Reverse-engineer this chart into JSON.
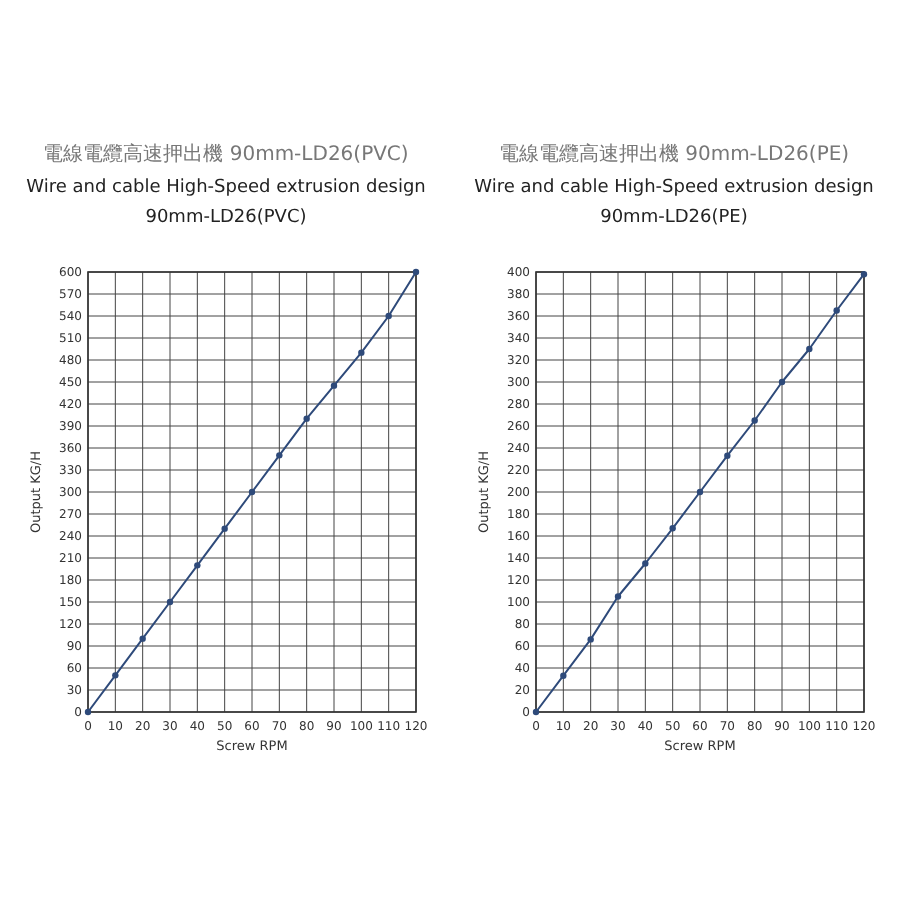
{
  "chart_data": [
    {
      "type": "line",
      "title": "電線電纜高速押出機 90mm-LD26(PVC)",
      "subtitle": "Wire and cable High-Speed extrusion design\n90mm-LD26(PVC)",
      "xlabel": "Screw RPM",
      "ylabel": "Output KG/H",
      "x": [
        0,
        10,
        20,
        30,
        40,
        50,
        60,
        70,
        80,
        90,
        100,
        110,
        120
      ],
      "series": [
        {
          "color": "#2e4a7a",
          "values": [
            0,
            50,
            100,
            150,
            200,
            250,
            300,
            350,
            400,
            445,
            490,
            540,
            600
          ]
        }
      ],
      "xlim": [
        0,
        120
      ],
      "xticks": [
        0,
        10,
        20,
        30,
        40,
        50,
        60,
        70,
        80,
        90,
        100,
        110,
        120
      ],
      "ylim": [
        0,
        600
      ],
      "yticks": [
        0,
        30,
        60,
        90,
        120,
        150,
        180,
        210,
        240,
        270,
        300,
        330,
        360,
        390,
        420,
        450,
        480,
        510,
        540,
        570,
        600
      ],
      "grid": true,
      "marker": "circle",
      "line_style": "solid"
    },
    {
      "type": "line",
      "title": "電線電纜高速押出機 90mm-LD26(PE)",
      "subtitle": "Wire and cable High-Speed extrusion design\n90mm-LD26(PE)",
      "xlabel": "Screw RPM",
      "ylabel": "Output KG/H",
      "x": [
        0,
        10,
        20,
        30,
        40,
        50,
        60,
        70,
        80,
        90,
        100,
        110,
        120
      ],
      "series": [
        {
          "color": "#2e4a7a",
          "values": [
            0,
            33,
            66,
            105,
            135,
            167,
            200,
            233,
            265,
            300,
            330,
            365,
            398
          ]
        }
      ],
      "xlim": [
        0,
        120
      ],
      "xticks": [
        0,
        10,
        20,
        30,
        40,
        50,
        60,
        70,
        80,
        90,
        100,
        110,
        120
      ],
      "ylim": [
        0,
        400
      ],
      "yticks": [
        0,
        20,
        40,
        60,
        80,
        100,
        120,
        140,
        160,
        180,
        200,
        220,
        240,
        260,
        280,
        300,
        320,
        340,
        360,
        380,
        400
      ],
      "grid": true,
      "marker": "circle",
      "line_style": "solid"
    }
  ]
}
